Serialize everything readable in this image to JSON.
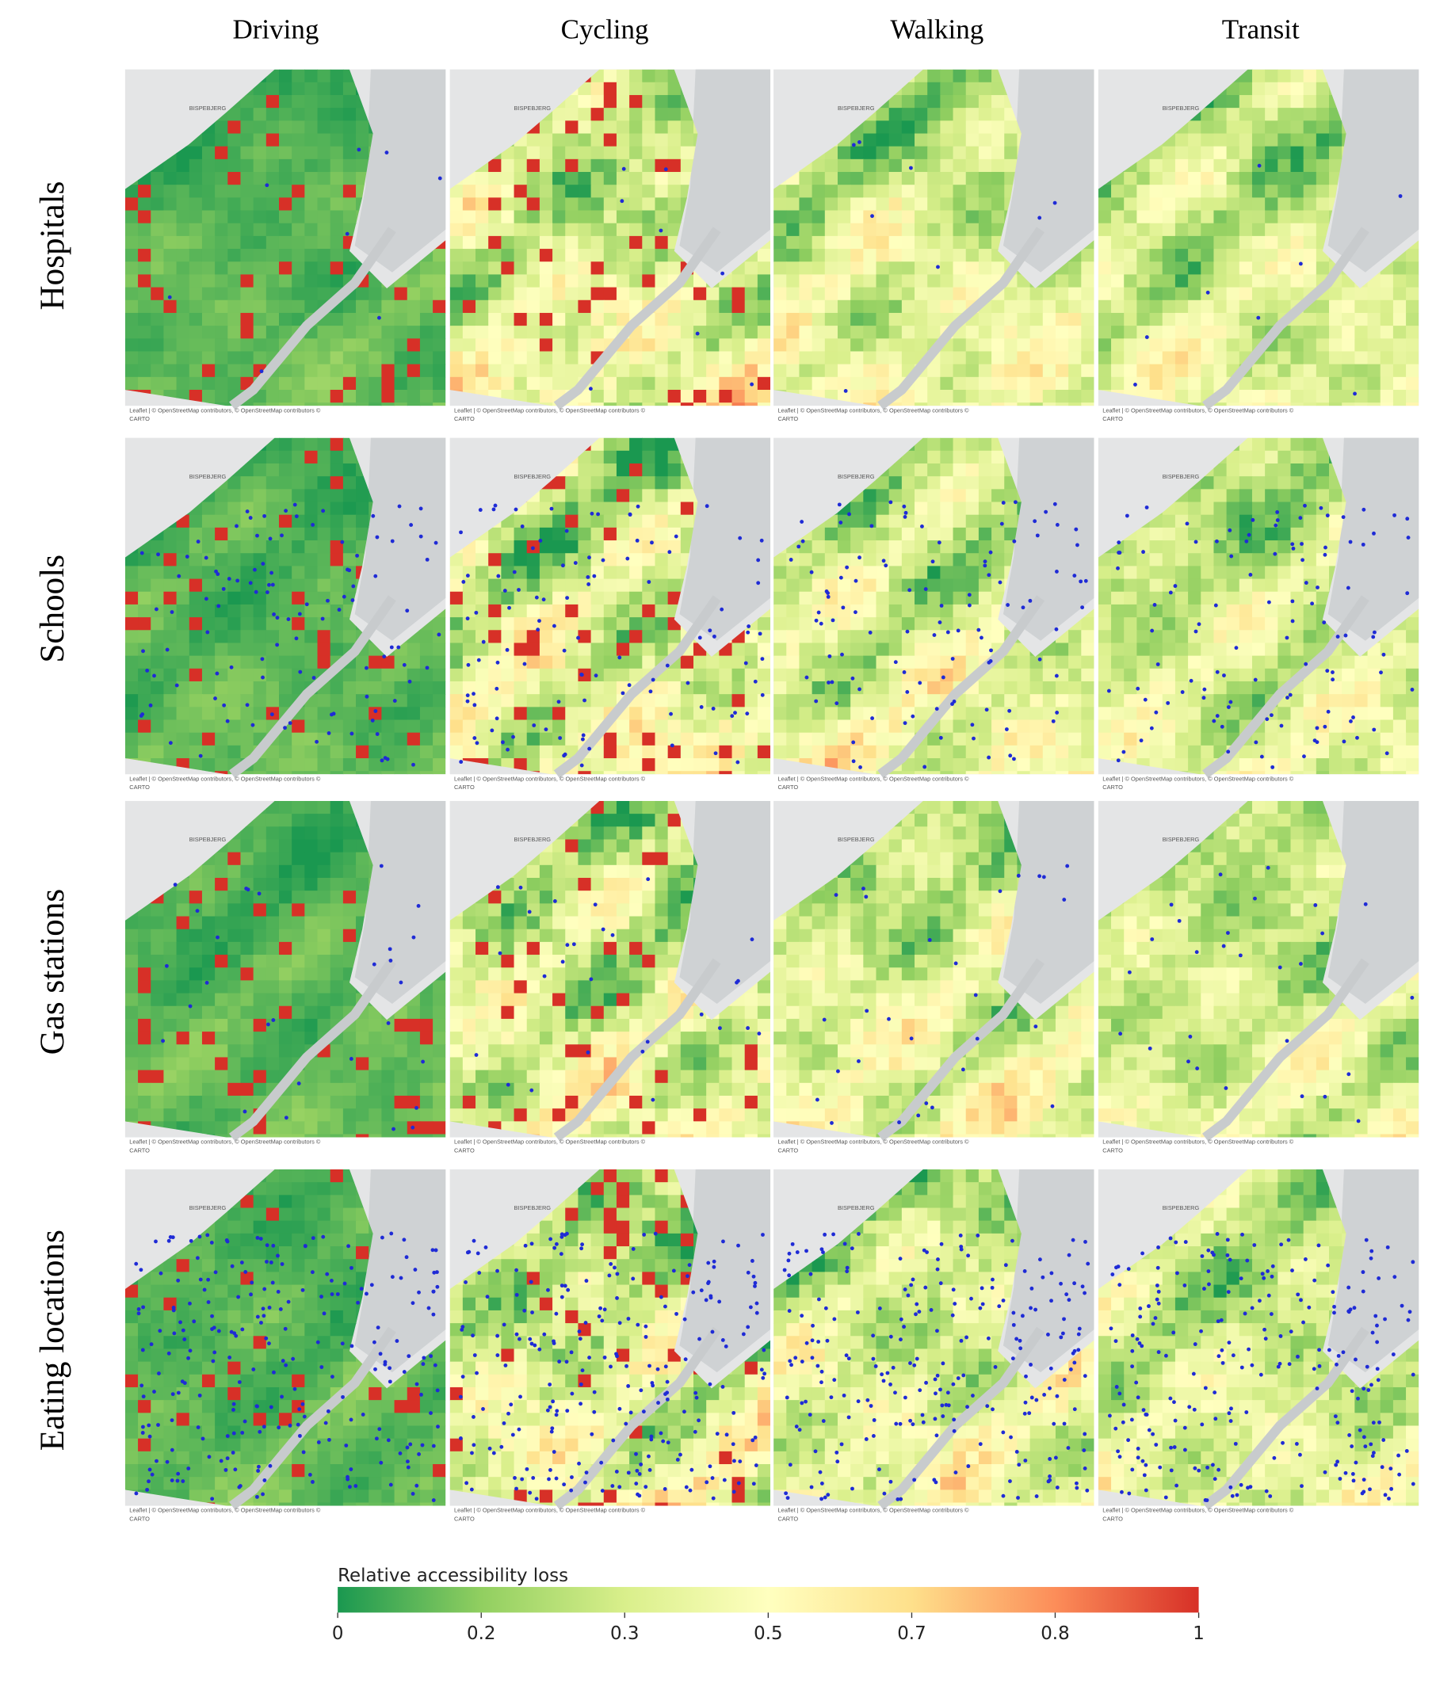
{
  "columns": [
    "Driving",
    "Cycling",
    "Walking",
    "Transit"
  ],
  "rows": [
    "Hospitals",
    "Schools",
    "Gas stations",
    "Eating locations"
  ],
  "map": {
    "place_label": "BISPEBJERG",
    "attribution": "Leaflet | © OpenStreetMap contributors, © OpenStreetMap contributors ©",
    "attribution_end": "CARTO"
  },
  "colorbar": {
    "title": "Relative accessibility loss",
    "colors": [
      "#1a9850",
      "#91cf60",
      "#d9ef8b",
      "#ffffbf",
      "#fee08b",
      "#fc8d59",
      "#d73027"
    ],
    "lim": [
      0,
      1
    ],
    "ticks": [
      0,
      {
        "value": 0.1667,
        "label": "0.2"
      },
      {
        "value": 0.3333,
        "label": "0.3"
      },
      0.5,
      {
        "value": 0.6667,
        "label": "0.7"
      },
      {
        "value": 0.8333,
        "label": "0.8"
      },
      1
    ]
  }
}
